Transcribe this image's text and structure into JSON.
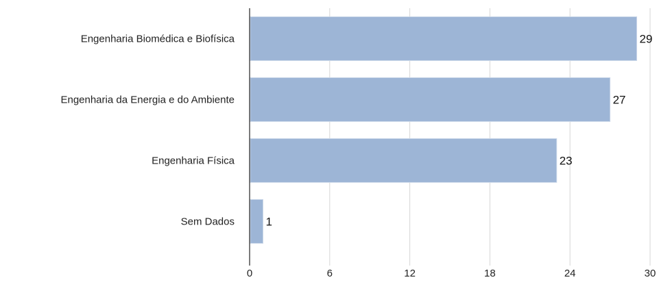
{
  "chart_data": {
    "type": "bar",
    "orientation": "horizontal",
    "categories": [
      "Engenharia Biomédica e Biofísica",
      "Engenharia da Energia e do Ambiente",
      "Engenharia Física",
      "Sem Dados"
    ],
    "values": [
      29,
      27,
      23,
      1
    ],
    "xlim": [
      0,
      30
    ],
    "xticks": [
      0,
      6,
      12,
      18,
      24,
      30
    ],
    "grid": true,
    "bar_color": "#9db5d6",
    "data_labels": true
  }
}
